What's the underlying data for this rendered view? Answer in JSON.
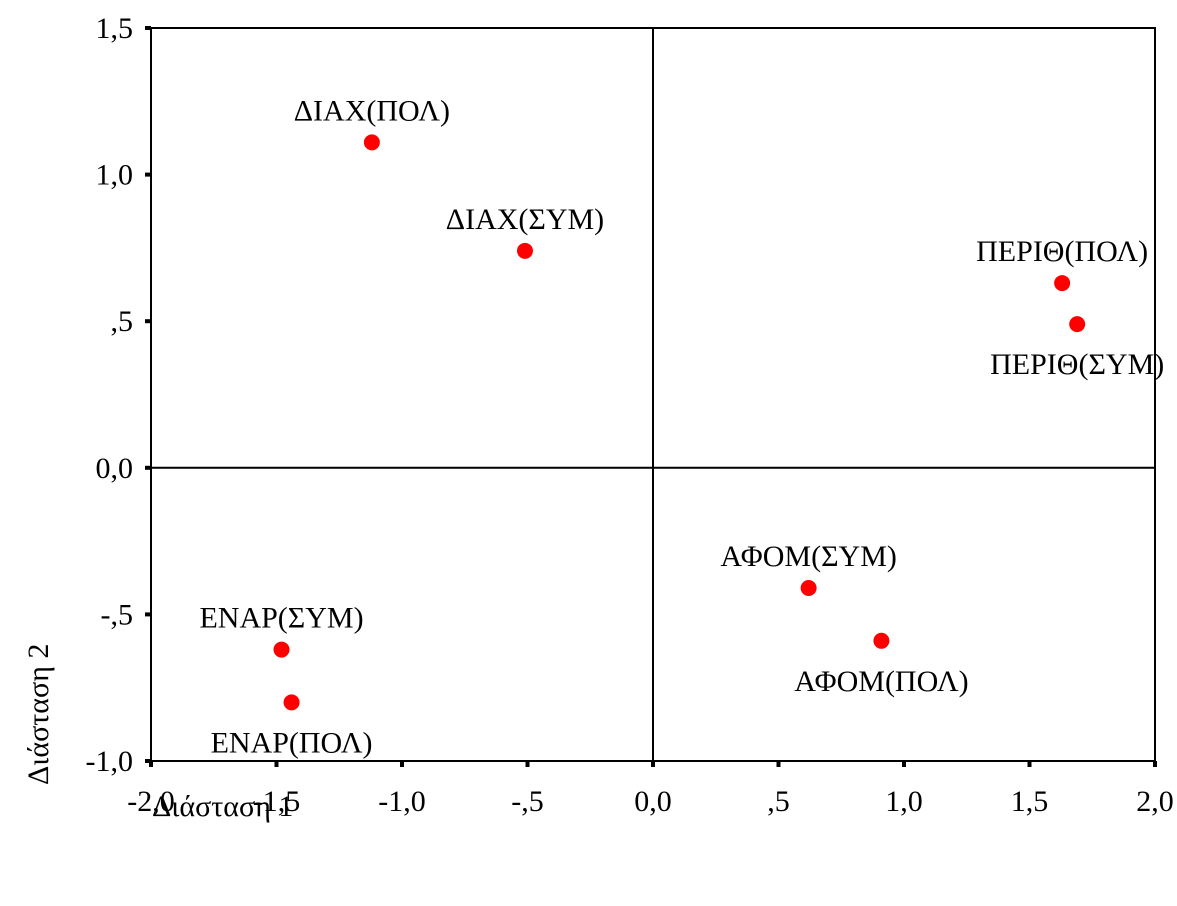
{
  "chart_data": {
    "type": "scatter",
    "xlabel": "Διάσταση 1",
    "ylabel": "Διάσταση 2",
    "xlim": [
      -2.0,
      2.0
    ],
    "ylim": [
      -1.0,
      1.5
    ],
    "x_ticks": [
      -2.0,
      -1.5,
      -1.0,
      -0.5,
      0.0,
      0.5,
      1.0,
      1.5,
      2.0
    ],
    "x_tick_labels": [
      "-2,0",
      "-1,5",
      "-1,0",
      "-,5",
      "0,0",
      ",5",
      "1,0",
      "1,5",
      "2,0"
    ],
    "y_ticks": [
      -1.0,
      -0.5,
      0.0,
      0.5,
      1.0,
      1.5
    ],
    "y_tick_labels": [
      "-1,0",
      "-,5",
      "0,0",
      ",5",
      "1,0",
      "1,5"
    ],
    "reference_lines": {
      "x": 0.0,
      "y": 0.0
    },
    "grid": false,
    "legend": "none",
    "marker_color": "#ff0000",
    "points": [
      {
        "label": "ΔΙΑΧ(ΠΟΛ)",
        "x": -1.12,
        "y": 1.11,
        "label_position": "above"
      },
      {
        "label": "ΔΙΑΧ(ΣΥΜ)",
        "x": -0.51,
        "y": 0.74,
        "label_position": "above"
      },
      {
        "label": "ΠΕΡΙΘ(ΠΟΛ)",
        "x": 1.63,
        "y": 0.63,
        "label_position": "above"
      },
      {
        "label": "ΠΕΡΙΘ(ΣΥΜ)",
        "x": 1.69,
        "y": 0.49,
        "label_position": "below"
      },
      {
        "label": "ΑΦΟΜ(ΣΥΜ)",
        "x": 0.62,
        "y": -0.41,
        "label_position": "above"
      },
      {
        "label": "ΑΦΟΜ(ΠΟΛ)",
        "x": 0.91,
        "y": -0.59,
        "label_position": "below"
      },
      {
        "label": "ΕΝΑΡ(ΣΥΜ)",
        "x": -1.48,
        "y": -0.62,
        "label_position": "above"
      },
      {
        "label": "ΕΝΑΡ(ΠΟΛ)",
        "x": -1.44,
        "y": -0.8,
        "label_position": "below"
      }
    ]
  }
}
